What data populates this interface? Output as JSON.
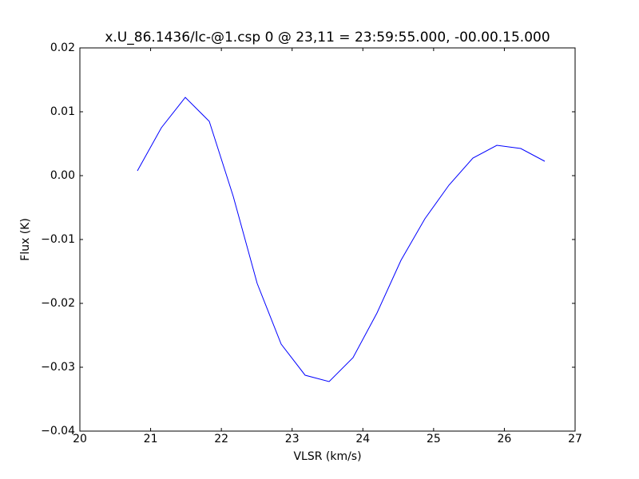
{
  "chart_data": {
    "type": "line",
    "title": "x.U_86.1436/lc-@1.csp 0 @ 23,11 = 23:59:55.000, -00.00.15.000",
    "x_label": "VLSR (km/s)",
    "y_label": "Flux (K)",
    "x": [
      20.813,
      21.152,
      21.49,
      21.829,
      22.168,
      22.506,
      22.845,
      23.184,
      23.523,
      23.861,
      24.2,
      24.539,
      24.877,
      25.216,
      25.555,
      25.894,
      26.232,
      26.571
    ],
    "series": [
      {
        "color": "#0000ff",
        "values": [
          0.00075,
          0.0075,
          0.01225,
          0.0085,
          -0.00325,
          -0.016875,
          -0.026375,
          -0.03125,
          -0.03225,
          -0.0285,
          -0.0215,
          -0.01325,
          -0.00675,
          -0.0015,
          0.00275,
          0.00475,
          0.00425,
          0.00225
        ]
      }
    ],
    "xlim": [
      20,
      27
    ],
    "ylim": [
      -0.04,
      0.02
    ],
    "xticks": [
      20,
      21,
      22,
      23,
      24,
      25,
      26,
      27
    ],
    "yticks": [
      {
        "value": -0.04,
        "label": "−0.04"
      },
      {
        "value": -0.03,
        "label": "−0.03"
      },
      {
        "value": -0.02,
        "label": "−0.02"
      },
      {
        "value": -0.01,
        "label": "−0.01"
      },
      {
        "value": 0,
        "label": "0.00"
      },
      0.01,
      0.02
    ],
    "grid": false
  }
}
